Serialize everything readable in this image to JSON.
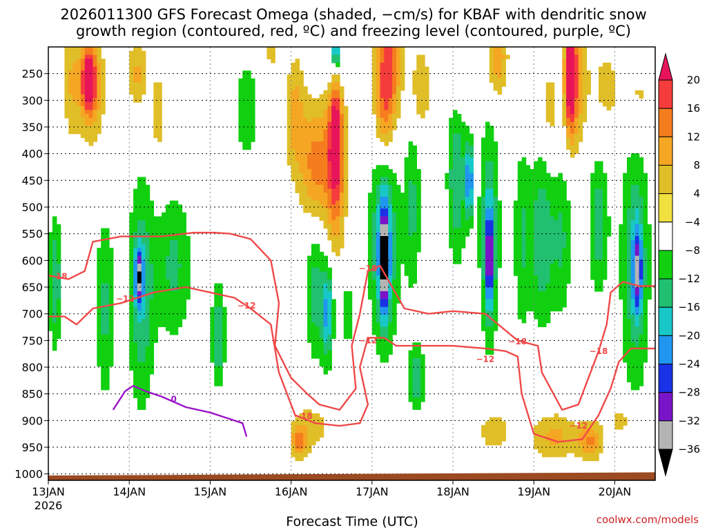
{
  "title_line1": "2026011300 GFS Forecast Omega (shaded, −cm/s) for KBAF with dendritic snow",
  "title_line2": "growth region (contoured, red, ºC) and freezing level (contoured, purple, ºC)",
  "xlabel": "Forecast Time (UTC)",
  "credit": "coolwx.com/models",
  "chart_data": {
    "type": "heatmap",
    "title": "2026011300 GFS Forecast Omega (shaded, −cm/s) for KBAF with dendritic snow growth region (contoured, red, ºC) and freezing level (contoured, purple, ºC)",
    "xlabel": "Forecast Time (UTC)",
    "ylabel": "Pressure (hPa)",
    "x_ticks": [
      {
        "day": 0,
        "label": "13JAN",
        "sublabel": "2026"
      },
      {
        "day": 1,
        "label": "14JAN"
      },
      {
        "day": 2,
        "label": "15JAN"
      },
      {
        "day": 3,
        "label": "16JAN"
      },
      {
        "day": 4,
        "label": "17JAN"
      },
      {
        "day": 5,
        "label": "18JAN"
      },
      {
        "day": 6,
        "label": "19JAN"
      },
      {
        "day": 7,
        "label": "20JAN"
      }
    ],
    "xlim_days": [
      0,
      7.5
    ],
    "y_ticks": [
      250,
      300,
      350,
      400,
      450,
      500,
      550,
      600,
      650,
      700,
      750,
      800,
      850,
      900,
      950,
      1000
    ],
    "ylim_hpa": [
      200,
      1012
    ],
    "surface_hpa_start": 1003,
    "surface_hpa_end": 997,
    "colorbar": {
      "labels": [
        "20",
        "16",
        "12",
        "8",
        "4",
        "−4",
        "−8",
        "−12",
        "−16",
        "−20",
        "−24",
        "−28",
        "−32",
        "−36"
      ],
      "colors": [
        "#e8145a",
        "#f53c3c",
        "#f57d1e",
        "#f5a623",
        "#e0be28",
        "#f0e040",
        "#ffffff",
        "#10d010",
        "#20c070",
        "#18c8c8",
        "#2096f0",
        "#1a32e6",
        "#7a14c8",
        "#b4b4b4",
        "#000000"
      ]
    },
    "omega_blobs": [
      {
        "day": 0.52,
        "hpa": 275,
        "rd": 0.16,
        "rp": 95,
        "v": 14
      },
      {
        "day": 0.5,
        "hpa": 260,
        "rd": 0.08,
        "rp": 50,
        "v": 18
      },
      {
        "day": 0.28,
        "hpa": 260,
        "rd": 0.1,
        "rp": 120,
        "v": 7
      },
      {
        "day": 1.1,
        "hpa": 250,
        "rd": 0.12,
        "rp": 70,
        "v": 9
      },
      {
        "day": 1.35,
        "hpa": 330,
        "rd": 0.08,
        "rp": 110,
        "v": 6
      },
      {
        "day": 0.08,
        "hpa": 640,
        "rd": 0.08,
        "rp": 120,
        "v": -12
      },
      {
        "day": 0.7,
        "hpa": 690,
        "rd": 0.12,
        "rp": 170,
        "v": -9
      },
      {
        "day": 1.15,
        "hpa": 660,
        "rd": 0.16,
        "rp": 210,
        "v": -12
      },
      {
        "day": 1.12,
        "hpa": 630,
        "rd": 0.05,
        "rp": 50,
        "v": -22
      },
      {
        "day": 1.55,
        "hpa": 610,
        "rd": 0.22,
        "rp": 140,
        "v": -9
      },
      {
        "day": 2.1,
        "hpa": 740,
        "rd": 0.08,
        "rp": 90,
        "v": -13
      },
      {
        "day": 2.45,
        "hpa": 320,
        "rd": 0.18,
        "rp": 120,
        "v": -6
      },
      {
        "day": 2.75,
        "hpa": 210,
        "rd": 0.08,
        "rp": 60,
        "v": 5
      },
      {
        "day": 3.05,
        "hpa": 330,
        "rd": 0.12,
        "rp": 110,
        "v": 10
      },
      {
        "day": 3.3,
        "hpa": 420,
        "rd": 0.18,
        "rp": 110,
        "v": 14
      },
      {
        "day": 3.55,
        "hpa": 410,
        "rd": 0.12,
        "rp": 150,
        "v": 19
      },
      {
        "day": 3.55,
        "hpa": 300,
        "rd": 0.07,
        "rp": 130,
        "v": 12
      },
      {
        "day": 3.55,
        "hpa": 230,
        "rd": 0.1,
        "rp": 80,
        "v": -12
      },
      {
        "day": 3.55,
        "hpa": 210,
        "rd": 0.03,
        "rp": 25,
        "v": -26
      },
      {
        "day": 3.3,
        "hpa": 660,
        "rd": 0.12,
        "rp": 130,
        "v": -10
      },
      {
        "day": 3.45,
        "hpa": 700,
        "rd": 0.07,
        "rp": 90,
        "v": -16
      },
      {
        "day": 3.25,
        "hpa": 910,
        "rd": 0.25,
        "rp": 50,
        "v": 6
      },
      {
        "day": 3.1,
        "hpa": 940,
        "rd": 0.1,
        "rp": 30,
        "v": 12
      },
      {
        "day": 3.7,
        "hpa": 700,
        "rd": 0.06,
        "rp": 60,
        "v": -8
      },
      {
        "day": 4.15,
        "hpa": 570,
        "rd": 0.18,
        "rp": 190,
        "v": -14
      },
      {
        "day": 4.15,
        "hpa": 600,
        "rd": 0.06,
        "rp": 100,
        "v": -27
      },
      {
        "day": 4.5,
        "hpa": 500,
        "rd": 0.1,
        "rp": 160,
        "v": -9
      },
      {
        "day": 4.55,
        "hpa": 820,
        "rd": 0.1,
        "rp": 60,
        "v": -12
      },
      {
        "day": 4.2,
        "hpa": 230,
        "rd": 0.16,
        "rp": 110,
        "v": 17
      },
      {
        "day": 4.15,
        "hpa": 330,
        "rd": 0.12,
        "rp": 90,
        "v": 10
      },
      {
        "day": 4.6,
        "hpa": 280,
        "rd": 0.12,
        "rp": 80,
        "v": 8
      },
      {
        "day": 5.1,
        "hpa": 260,
        "rd": 0.12,
        "rp": 60,
        "v": 5
      },
      {
        "day": 5.55,
        "hpa": 220,
        "rd": 0.12,
        "rp": 70,
        "v": 12
      },
      {
        "day": 5.05,
        "hpa": 450,
        "rd": 0.12,
        "rp": 150,
        "v": -12
      },
      {
        "day": 5.2,
        "hpa": 450,
        "rd": 0.04,
        "rp": 70,
        "v": -22
      },
      {
        "day": 5.45,
        "hpa": 550,
        "rd": 0.12,
        "rp": 200,
        "v": -13
      },
      {
        "day": 5.45,
        "hpa": 600,
        "rd": 0.04,
        "rp": 90,
        "v": -22
      },
      {
        "day": 5.85,
        "hpa": 560,
        "rd": 0.1,
        "rp": 180,
        "v": -8
      },
      {
        "day": 5.5,
        "hpa": 920,
        "rd": 0.25,
        "rp": 45,
        "v": 6
      },
      {
        "day": 6.1,
        "hpa": 560,
        "rd": 0.15,
        "rp": 160,
        "v": -12
      },
      {
        "day": 6.35,
        "hpa": 560,
        "rd": 0.12,
        "rp": 150,
        "v": -8
      },
      {
        "day": 6.5,
        "hpa": 250,
        "rd": 0.12,
        "rp": 130,
        "v": 14
      },
      {
        "day": 6.45,
        "hpa": 260,
        "rd": 0.06,
        "rp": 100,
        "v": 19
      },
      {
        "day": 6.2,
        "hpa": 320,
        "rd": 0.1,
        "rp": 100,
        "v": 6
      },
      {
        "day": 6.9,
        "hpa": 280,
        "rd": 0.28,
        "rp": 110,
        "v": 5
      },
      {
        "day": 6.8,
        "hpa": 530,
        "rd": 0.12,
        "rp": 130,
        "v": -11
      },
      {
        "day": 6.25,
        "hpa": 930,
        "rd": 0.3,
        "rp": 45,
        "v": 9
      },
      {
        "day": 6.7,
        "hpa": 940,
        "rd": 0.15,
        "rp": 35,
        "v": 12
      },
      {
        "day": 7.25,
        "hpa": 600,
        "rd": 0.18,
        "rp": 260,
        "v": -11
      },
      {
        "day": 7.28,
        "hpa": 620,
        "rd": 0.06,
        "rp": 80,
        "v": -20
      },
      {
        "day": 7.3,
        "hpa": 300,
        "rd": 0.15,
        "rp": 90,
        "v": 6
      },
      {
        "day": 7.1,
        "hpa": 900,
        "rd": 0.2,
        "rp": 40,
        "v": 6
      }
    ],
    "contours": [
      {
        "name": "dgz-minus18-upper",
        "color": "#f04848",
        "label": "−18",
        "label_at": [
          2.15,
          548
        ],
        "points": [
          [
            0,
            628
          ],
          [
            0.25,
            635
          ],
          [
            0.45,
            620
          ],
          [
            0.55,
            565
          ],
          [
            0.9,
            555
          ],
          [
            1.4,
            555
          ],
          [
            1.8,
            548
          ],
          [
            2.05,
            548
          ],
          [
            2.25,
            550
          ],
          [
            2.5,
            560
          ],
          [
            2.75,
            600
          ],
          [
            2.85,
            680
          ],
          [
            2.8,
            760
          ],
          [
            3.0,
            820
          ],
          [
            3.2,
            850
          ],
          [
            3.35,
            870
          ],
          [
            3.6,
            880
          ],
          [
            3.8,
            840
          ],
          [
            3.75,
            760
          ],
          [
            3.85,
            700
          ],
          [
            3.95,
            620
          ],
          [
            4.1,
            610
          ],
          [
            4.25,
            650
          ],
          [
            4.4,
            690
          ],
          [
            4.7,
            700
          ],
          [
            5.0,
            695
          ],
          [
            5.4,
            700
          ],
          [
            5.8,
            750
          ],
          [
            6.05,
            760
          ],
          [
            6.1,
            810
          ],
          [
            6.35,
            880
          ],
          [
            6.55,
            870
          ],
          [
            6.8,
            770
          ],
          [
            6.9,
            720
          ],
          [
            6.95,
            660
          ],
          [
            7.1,
            640
          ],
          [
            7.3,
            648
          ],
          [
            7.5,
            648
          ]
        ]
      },
      {
        "name": "dgz-minus12-lower",
        "color": "#f04848",
        "label": "−12",
        "label_at": [
          2.5,
          688
        ],
        "points": [
          [
            0,
            705
          ],
          [
            0.2,
            705
          ],
          [
            0.35,
            720
          ],
          [
            0.55,
            690
          ],
          [
            0.9,
            680
          ],
          [
            1.3,
            660
          ],
          [
            1.7,
            650
          ],
          [
            2.0,
            660
          ],
          [
            2.3,
            670
          ],
          [
            2.5,
            690
          ],
          [
            2.75,
            720
          ],
          [
            2.85,
            810
          ],
          [
            2.95,
            850
          ],
          [
            3.05,
            890
          ],
          [
            3.3,
            905
          ],
          [
            3.6,
            910
          ],
          [
            3.85,
            905
          ],
          [
            3.95,
            870
          ],
          [
            3.85,
            800
          ],
          [
            3.95,
            745
          ],
          [
            4.15,
            745
          ],
          [
            4.3,
            760
          ],
          [
            4.6,
            760
          ],
          [
            5.0,
            760
          ],
          [
            5.4,
            765
          ],
          [
            5.65,
            770
          ],
          [
            5.8,
            780
          ],
          [
            5.85,
            850
          ],
          [
            6.0,
            925
          ],
          [
            6.3,
            940
          ],
          [
            6.6,
            935
          ],
          [
            6.8,
            890
          ],
          [
            6.95,
            840
          ],
          [
            7.05,
            790
          ],
          [
            7.2,
            765
          ],
          [
            7.5,
            765
          ]
        ]
      },
      {
        "name": "freezing-level-0c",
        "color": "#9a12c8",
        "label": "0",
        "label_at": [
          1.5,
          862
        ],
        "points": [
          [
            0.8,
            880
          ],
          [
            0.95,
            845
          ],
          [
            1.05,
            835
          ],
          [
            1.2,
            845
          ],
          [
            1.4,
            855
          ],
          [
            1.7,
            875
          ],
          [
            2.0,
            885
          ],
          [
            2.2,
            895
          ],
          [
            2.4,
            905
          ],
          [
            2.45,
            930
          ]
        ]
      }
    ],
    "contour_labels": [
      {
        "label": "−18",
        "day": 0.12,
        "hpa": 630,
        "color": "#f04848"
      },
      {
        "label": "−12",
        "day": 0.95,
        "hpa": 672,
        "color": "#f04848"
      },
      {
        "label": "−12",
        "day": 2.45,
        "hpa": 685,
        "color": "#f04848"
      },
      {
        "label": "−18",
        "day": 3.15,
        "hpa": 892,
        "color": "#f04848"
      },
      {
        "label": "−18",
        "day": 3.95,
        "hpa": 615,
        "color": "#f04848"
      },
      {
        "label": "−12",
        "day": 3.95,
        "hpa": 750,
        "color": "#f04848"
      },
      {
        "label": "−12",
        "day": 5.4,
        "hpa": 785,
        "color": "#f04848"
      },
      {
        "label": "−18",
        "day": 5.8,
        "hpa": 752,
        "color": "#f04848"
      },
      {
        "label": "−18",
        "day": 6.8,
        "hpa": 770,
        "color": "#f04848"
      },
      {
        "label": "−12",
        "day": 6.55,
        "hpa": 910,
        "color": "#f04848"
      },
      {
        "label": "0",
        "day": 1.55,
        "hpa": 860,
        "color": "#9a12c8"
      }
    ]
  }
}
